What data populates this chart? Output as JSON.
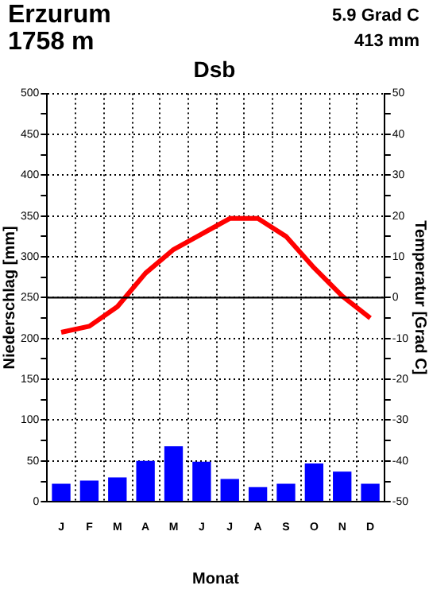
{
  "chart_data": {
    "type": "bar",
    "title": "Dsb",
    "xlabel": "Monat",
    "ylabel": "Niederschlag [mm]",
    "y2label": "Temperatur [Grad C]",
    "annotations": [
      "Erzurum",
      "1758 m",
      "5.9 Grad C",
      "413 mm"
    ],
    "categories": [
      "J",
      "F",
      "M",
      "A",
      "M",
      "J",
      "J",
      "A",
      "S",
      "O",
      "N",
      "D"
    ],
    "series": [
      {
        "color": "#0000ff",
        "values": [
          22,
          26,
          30,
          50,
          68,
          49,
          28,
          18,
          22,
          47,
          37,
          22
        ]
      },
      {
        "type": "line",
        "axis": "y2",
        "color": "#ff0000",
        "marker": "none",
        "line_style": "solid",
        "values": [
          -8.5,
          -7,
          -2.2,
          6,
          11.8,
          15.6,
          19.4,
          19.4,
          15,
          7.3,
          0.4,
          -5
        ]
      }
    ],
    "ylim": [
      0,
      500
    ],
    "yticks": [
      0,
      {
        "value": 25,
        "label": null
      },
      50,
      {
        "value": 75,
        "label": null
      },
      100,
      {
        "value": 125,
        "label": null
      },
      150,
      {
        "value": 175,
        "label": null
      },
      200,
      {
        "value": 225,
        "label": null
      },
      250,
      {
        "value": 275,
        "label": null
      },
      300,
      {
        "value": 325,
        "label": null
      },
      350,
      {
        "value": 375,
        "label": null
      },
      400,
      {
        "value": 425,
        "label": null
      },
      450,
      {
        "value": 475,
        "label": null
      },
      500
    ],
    "y2lim": [
      -50,
      50
    ],
    "y2ticks": [
      -50,
      {
        "value": -45,
        "label": null
      },
      -40,
      {
        "value": -35,
        "label": null
      },
      -30,
      {
        "value": -25,
        "label": null
      },
      -20,
      {
        "value": -15,
        "label": null
      },
      -10,
      {
        "value": -5,
        "label": null
      },
      0,
      {
        "value": 5,
        "label": null
      },
      10,
      {
        "value": 15,
        "label": null
      },
      20,
      {
        "value": 25,
        "label": null
      },
      30,
      {
        "value": 35,
        "label": null
      },
      40,
      {
        "value": 45,
        "label": null
      },
      50
    ],
    "ref_lines": [
      {
        "axis": "y2",
        "value": 0,
        "color": "#000000",
        "line_style": "solid"
      }
    ],
    "grid": true,
    "legend": false
  }
}
